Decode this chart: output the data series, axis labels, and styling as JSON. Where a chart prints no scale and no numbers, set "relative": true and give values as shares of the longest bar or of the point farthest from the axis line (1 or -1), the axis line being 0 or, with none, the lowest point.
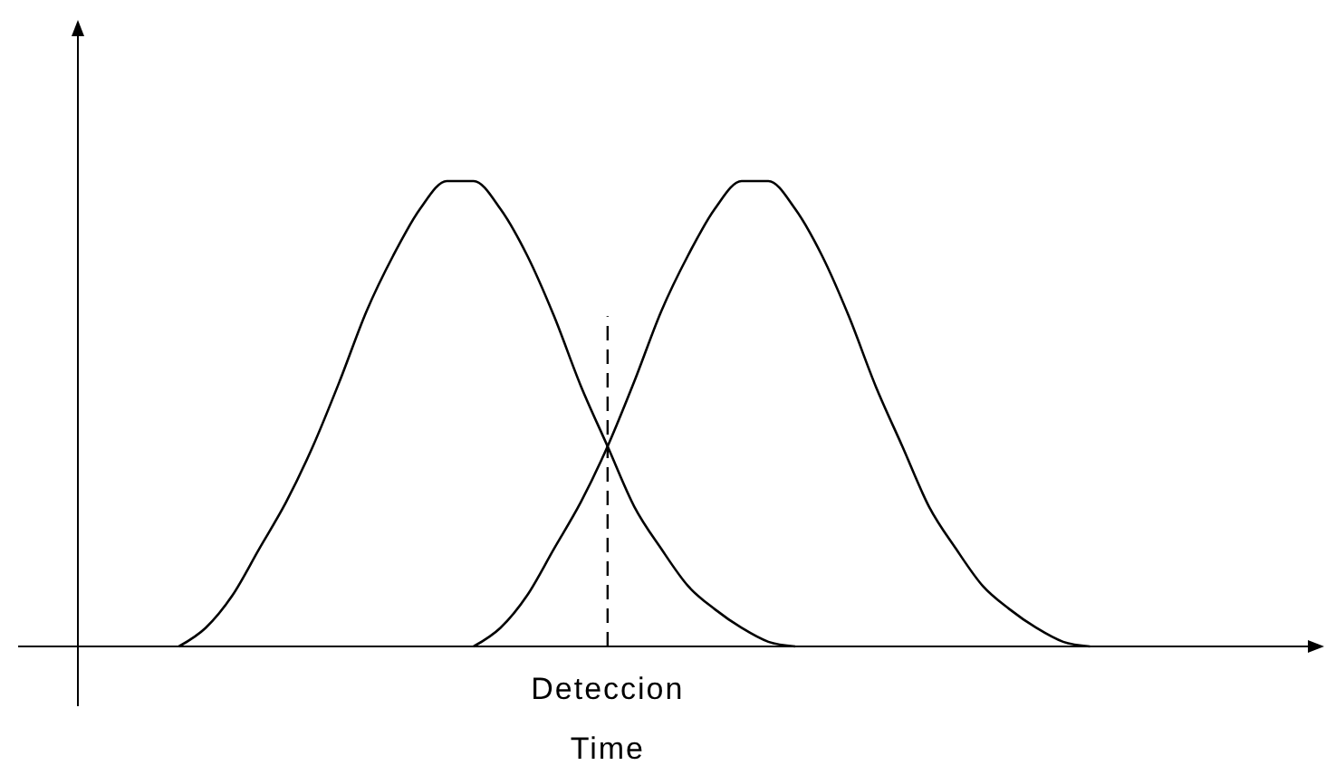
{
  "chart_data": {
    "type": "line",
    "relative": true,
    "marker": "none",
    "line_style": "solid",
    "xlabel": "Deteccion Time",
    "categories": [
      null,
      null,
      null,
      null,
      null,
      null,
      null,
      null,
      null,
      null,
      null,
      null,
      null,
      null,
      null,
      null,
      null,
      null,
      null,
      null,
      null,
      null,
      null,
      null,
      null,
      null,
      null,
      null,
      null,
      null,
      null,
      null,
      null,
      null,
      null,
      null,
      null,
      null,
      null,
      null,
      null,
      null,
      null,
      null,
      null,
      null,
      null,
      null,
      null
    ],
    "series": [
      {
        "color": "#000000",
        "values": [
          null,
          null,
          null,
          null,
          null,
          null,
          0,
          0.04,
          0.11,
          0.21,
          0.31,
          0.43,
          0.57,
          0.72,
          0.84,
          0.94,
          1,
          1,
          0.94,
          0.84,
          0.71,
          0.56,
          0.43,
          0.3,
          0.21,
          0.13,
          0.08,
          0.04,
          0.01,
          0,
          null,
          null,
          null,
          null,
          null,
          null,
          null,
          null,
          null,
          null,
          null,
          null,
          null,
          null,
          null,
          null,
          null,
          null,
          null
        ]
      },
      {
        "color": "#000000",
        "values": [
          null,
          null,
          null,
          null,
          null,
          null,
          null,
          null,
          null,
          null,
          null,
          null,
          null,
          null,
          null,
          null,
          null,
          0,
          0.04,
          0.11,
          0.21,
          0.31,
          0.43,
          0.57,
          0.72,
          0.84,
          0.94,
          1,
          1,
          0.94,
          0.84,
          0.71,
          0.56,
          0.43,
          0.3,
          0.21,
          0.13,
          0.08,
          0.04,
          0.01,
          0,
          null,
          null,
          null,
          null,
          null,
          null,
          null,
          null
        ]
      }
    ]
  }
}
